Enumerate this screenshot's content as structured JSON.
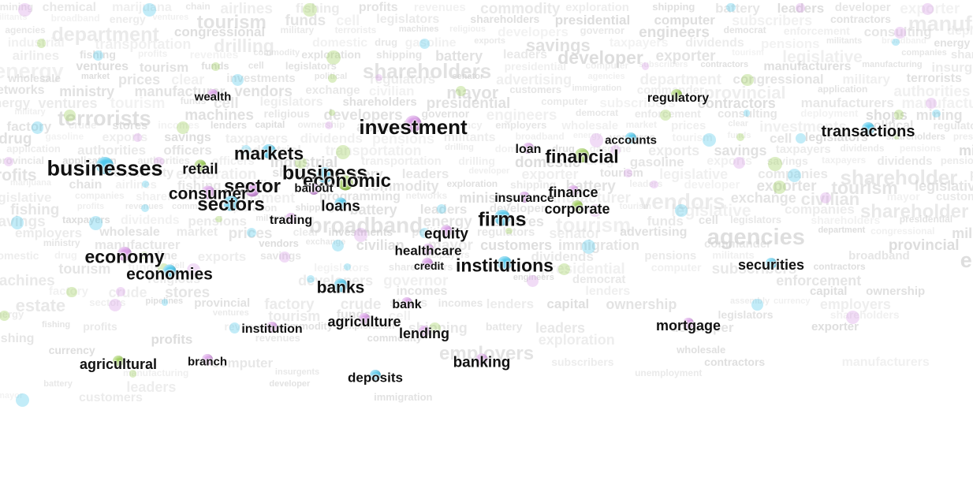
{
  "colors": {
    "cyan": "#4fc8ec",
    "violet": "#d89ae6",
    "green": "#9ccd55",
    "grey_text": "#cfcfcf"
  },
  "terms": [
    {
      "id": "businesses",
      "text": "businesses",
      "color": "cyan"
    },
    {
      "id": "retail",
      "text": "retail",
      "color": "green"
    },
    {
      "id": "markets",
      "text": "markets",
      "color": "cyan"
    },
    {
      "id": "investment",
      "text": "investment",
      "color": "violet"
    },
    {
      "id": "business",
      "text": "business",
      "color": "cyan"
    },
    {
      "id": "economic",
      "text": "economic",
      "color": "green"
    },
    {
      "id": "sector",
      "text": "sector",
      "color": "violet"
    },
    {
      "id": "bailout",
      "text": "bailout",
      "color": "violet"
    },
    {
      "id": "consumer",
      "text": "consumer",
      "color": "violet"
    },
    {
      "id": "sectors",
      "text": "sectors",
      "color": "cyan"
    },
    {
      "id": "loans",
      "text": "loans",
      "color": "cyan"
    },
    {
      "id": "trading",
      "text": "trading",
      "color": "violet"
    },
    {
      "id": "wealth",
      "text": "wealth",
      "color": "violet"
    },
    {
      "id": "regulatory",
      "text": "regulatory",
      "color": "green"
    },
    {
      "id": "transactions",
      "text": "transactions",
      "color": "cyan"
    },
    {
      "id": "loan",
      "text": "loan",
      "color": "violet"
    },
    {
      "id": "financial",
      "text": "financial",
      "color": "green"
    },
    {
      "id": "accounts",
      "text": "accounts",
      "color": "cyan"
    },
    {
      "id": "insurance",
      "text": "insurance",
      "color": "violet"
    },
    {
      "id": "finance",
      "text": "finance",
      "color": "violet"
    },
    {
      "id": "corporate",
      "text": "corporate",
      "color": "green"
    },
    {
      "id": "firms",
      "text": "firms",
      "color": "cyan"
    },
    {
      "id": "equity",
      "text": "equity",
      "color": "violet"
    },
    {
      "id": "healthcare",
      "text": "healthcare",
      "color": "violet"
    },
    {
      "id": "credit",
      "text": "credit",
      "color": "violet"
    },
    {
      "id": "institutions",
      "text": "institutions",
      "color": "cyan"
    },
    {
      "id": "securities",
      "text": "securities",
      "color": "cyan"
    },
    {
      "id": "economy",
      "text": "economy",
      "color": "violet"
    },
    {
      "id": "economies",
      "text": "economies",
      "color": "cyan"
    },
    {
      "id": "banks",
      "text": "banks",
      "color": "cyan"
    },
    {
      "id": "bank",
      "text": "bank",
      "color": "violet"
    },
    {
      "id": "agriculture",
      "text": "agriculture",
      "color": "violet"
    },
    {
      "id": "institution",
      "text": "institution",
      "color": "violet"
    },
    {
      "id": "lending",
      "text": "lending",
      "color": "violet"
    },
    {
      "id": "mortgage",
      "text": "mortgage",
      "color": "violet"
    },
    {
      "id": "agricultural",
      "text": "agricultural",
      "color": "green"
    },
    {
      "id": "branch",
      "text": "branch",
      "color": "violet"
    },
    {
      "id": "banking",
      "text": "banking",
      "color": "violet"
    },
    {
      "id": "deposits",
      "text": "deposits",
      "color": "cyan"
    }
  ],
  "background_terms": [
    "legislative",
    "investments",
    "legislators",
    "companies",
    "political",
    "shareholders",
    "shareholder",
    "regulators",
    "presidential",
    "parliament",
    "senator",
    "computer",
    "programming",
    "advertising",
    "subscribers",
    "networks",
    "agencies",
    "contractors",
    "ministry",
    "department",
    "manufacturers",
    "manufacturer",
    "congressional",
    "manufacturing",
    "vendors",
    "military",
    "insurgents",
    "exchange",
    "terrorists",
    "unemployment",
    "civilian",
    "machines",
    "army",
    "mayor",
    "religious",
    "soldiers",
    "customers",
    "developers",
    "cabinet",
    "immigration",
    "governor",
    "corruption",
    "commander",
    "engineers",
    "specialist",
    "provincial",
    "democrat",
    "administration",
    "application",
    "enforcement",
    "criminal",
    "authorities",
    "consulting",
    "advisers",
    "officers",
    "deployment",
    "estate",
    "industrial",
    "shops",
    "sectors",
    "transportation",
    "mining",
    "pipelines",
    "drilling",
    "chemical",
    "provincial",
    "domestic",
    "marijuana",
    "factory",
    "drug",
    "chain",
    "crude",
    "gasoline",
    "airlines",
    "stores",
    "exports",
    "fishing",
    "incomes",
    "savings",
    "profits",
    "lenders",
    "taxpayers",
    "revenues",
    "capital",
    "dividends",
    "commodity",
    "ownership",
    "pensions",
    "exploration",
    "assembly",
    "militants",
    "shipping",
    "currency",
    "broadband",
    "battery",
    "employers",
    "energy",
    "leaders",
    "wholesale",
    "ventures",
    "developer",
    "market",
    "tourism",
    "exporter",
    "prices",
    "funds",
    "tourism",
    "clear",
    "cell"
  ]
}
